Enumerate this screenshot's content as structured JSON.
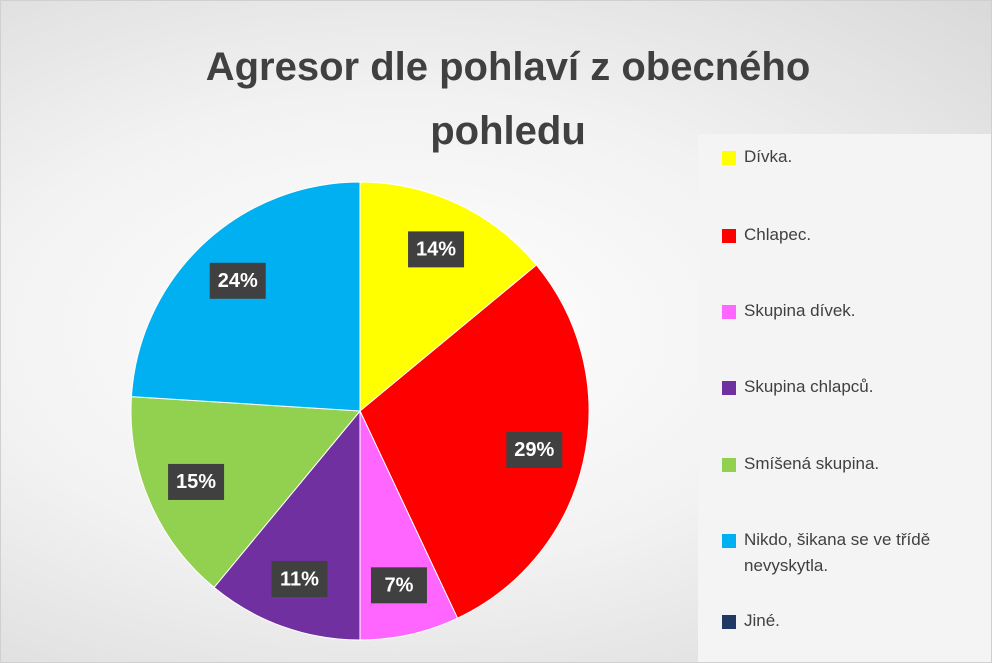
{
  "chart_data": {
    "type": "pie",
    "title": "Agresor dle pohlaví z obecného pohledu",
    "categories": [
      "Dívka.",
      "Chlapec.",
      "Skupina dívek.",
      "Skupina chlapců.",
      "Smíšená skupina.",
      "Nikdo, šikana se ve třídě nevyskytla.",
      "Jiné."
    ],
    "values": [
      14,
      29,
      7,
      11,
      15,
      24,
      0
    ],
    "value_labels": [
      "14%",
      "29%",
      "7%",
      "11%",
      "15%",
      "24%",
      null
    ],
    "colors": [
      "#ffff00",
      "#ff0000",
      "#ff66ff",
      "#7030a0",
      "#92d050",
      "#00b0f0",
      "#203864"
    ],
    "legend": "right"
  }
}
